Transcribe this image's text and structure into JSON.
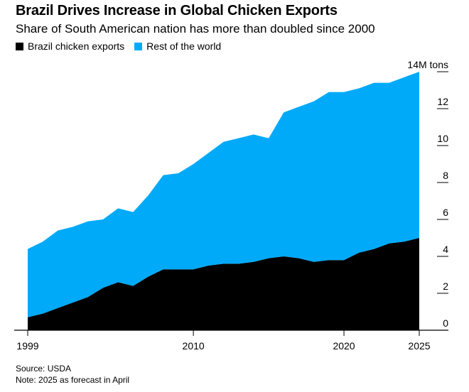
{
  "title": "Brazil Drives Increase in Global Chicken Exports",
  "subtitle": "Share of South American nation has more than doubled since 2000",
  "source": "Source: USDA",
  "note": "Note: 2025 as forecast in April",
  "colors": {
    "brazil": "#000000",
    "rest": "#00aaf9",
    "axis": "#000000"
  },
  "chart_data": {
    "type": "area",
    "stacked": true,
    "x": [
      1999,
      2000,
      2001,
      2002,
      2003,
      2004,
      2005,
      2006,
      2007,
      2008,
      2009,
      2010,
      2011,
      2012,
      2013,
      2014,
      2015,
      2016,
      2017,
      2018,
      2019,
      2020,
      2021,
      2022,
      2023,
      2024,
      2025
    ],
    "series": [
      {
        "name": "Brazil chicken exports",
        "color": "#000000",
        "values": [
          0.7,
          0.9,
          1.2,
          1.5,
          1.8,
          2.3,
          2.6,
          2.4,
          2.9,
          3.3,
          3.3,
          3.3,
          3.5,
          3.6,
          3.6,
          3.7,
          3.9,
          4.0,
          3.9,
          3.7,
          3.8,
          3.8,
          4.2,
          4.4,
          4.7,
          4.8,
          5.0
        ]
      },
      {
        "name": "Rest of the world",
        "color": "#00aaf9",
        "values": [
          3.7,
          3.9,
          4.2,
          4.1,
          4.1,
          3.7,
          4.0,
          4.0,
          4.4,
          5.1,
          5.2,
          5.7,
          6.1,
          6.6,
          6.8,
          6.9,
          6.5,
          7.8,
          8.2,
          8.7,
          9.1,
          9.1,
          8.9,
          9.0,
          8.7,
          8.9,
          9.0
        ]
      }
    ],
    "xlim": [
      1999,
      2025
    ],
    "ylim": [
      0,
      14
    ],
    "x_ticks": [
      1999,
      2010,
      2020,
      2025
    ],
    "x_tick_labels": [
      "1999",
      "2010",
      "2020",
      "2025"
    ],
    "y_ticks": [
      0,
      2,
      4,
      6,
      8,
      10,
      12,
      14
    ],
    "y_tick_labels": [
      "0",
      "2",
      "4",
      "6",
      "8",
      "10",
      "12",
      "14M tons"
    ],
    "y_axis_position": "right",
    "legend_position": "top-left",
    "grid": false
  }
}
